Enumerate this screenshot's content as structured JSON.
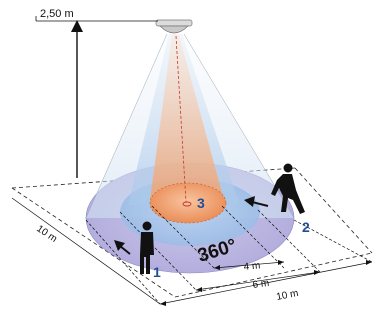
{
  "height_label": "2,50 m",
  "angle_label": "360°",
  "zones": [
    {
      "number": "1",
      "color": "#1f4f96"
    },
    {
      "number": "2",
      "color": "#1f4f96"
    },
    {
      "number": "3",
      "color": "#1f4f96"
    }
  ],
  "dimensions": {
    "inner": "4 m",
    "middle": "6 m",
    "outer": "10 m",
    "side": "10 m"
  },
  "colors": {
    "outer_zone": "#bcb8e0",
    "middle_zone": "#a9c6e8",
    "inner_zone": "#f1a678",
    "beam_outer": "#dfe8f4",
    "beam_inner": "#f4c7a8"
  }
}
